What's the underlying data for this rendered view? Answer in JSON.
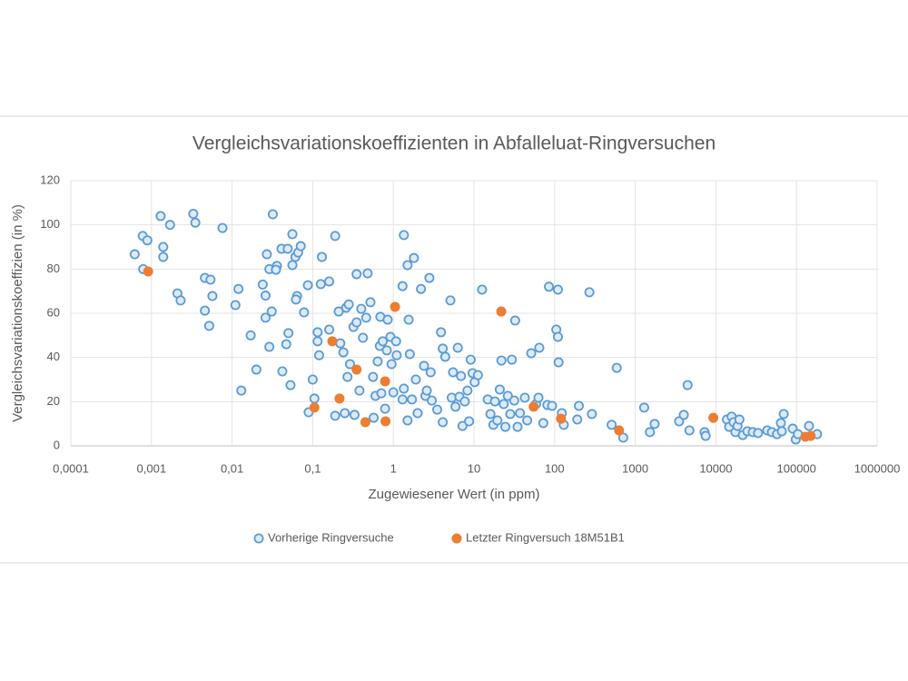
{
  "chart_data": {
    "type": "scatter",
    "title": "Vergleichsvariationskoeffizienten in Abfalleluat-Ringversuchen",
    "x_label": "Zugewiesener Wert (in ppm)",
    "y_label": "Vergleichsvariationskoeffizien (in %)",
    "x_log": true,
    "grid": true,
    "legend": "bottom",
    "xlim": [
      0.0001,
      1000000
    ],
    "ylim": [
      0,
      120
    ],
    "xticks": [
      {
        "value": 0.0001,
        "label": "0,0001"
      },
      {
        "value": 0.001,
        "label": "0,001"
      },
      {
        "value": 0.01,
        "label": "0,01"
      },
      {
        "value": 0.1,
        "label": "0,1"
      },
      1,
      10,
      100,
      1000,
      10000,
      100000,
      1000000
    ],
    "yticks": [
      0,
      20,
      40,
      60,
      80,
      100,
      120
    ],
    "series": [
      {
        "name": "Vorherige Ringversuche",
        "color": "#5b9bd5",
        "fill": "#deebf7",
        "x": [
          0.00062,
          0.00078,
          0.00089,
          0.00079,
          0.0013,
          0.0014,
          0.0014,
          0.0017,
          0.0021,
          0.0023,
          0.0033,
          0.0035,
          0.0076,
          0.0046,
          0.0054,
          0.0057,
          0.0046,
          0.0052,
          0.012,
          0.011,
          0.013,
          0.017,
          0.02,
          0.024,
          0.026,
          0.027,
          0.029,
          0.031,
          0.029,
          0.026,
          0.032,
          0.036,
          0.035,
          0.041,
          0.049,
          0.042,
          0.047,
          0.05,
          0.053,
          0.056,
          0.056,
          0.061,
          0.064,
          0.066,
          0.071,
          0.078,
          0.062,
          0.089,
          0.1,
          0.105,
          0.087,
          0.115,
          0.115,
          0.12,
          0.126,
          0.13,
          0.16,
          0.16,
          0.19,
          0.19,
          0.21,
          0.22,
          0.24,
          0.25,
          0.26,
          0.27,
          0.28,
          0.29,
          0.32,
          0.33,
          0.35,
          0.35,
          0.38,
          0.4,
          0.42,
          0.46,
          0.48,
          0.52,
          0.56,
          0.57,
          0.6,
          0.64,
          0.68,
          0.69,
          0.71,
          0.74,
          0.79,
          0.83,
          0.85,
          0.92,
          0.95,
          1.0,
          1.08,
          1.1,
          1.3,
          1.35,
          1.3,
          1.35,
          1.5,
          1.5,
          1.55,
          1.6,
          1.7,
          1.8,
          1.9,
          2.0,
          2.2,
          2.4,
          2.5,
          2.6,
          2.8,
          2.9,
          3.0,
          3.5,
          3.9,
          4.1,
          4.4,
          4.1,
          5.1,
          5.3,
          5.5,
          5.9,
          6.3,
          6.6,
          6.9,
          7.2,
          7.7,
          8.3,
          8.7,
          9.1,
          9.6,
          10.2,
          11.2,
          12.6,
          14.8,
          16,
          17.4,
          18.2,
          19.5,
          20.9,
          21.9,
          23.4,
          24.5,
          26.3,
          28.2,
          29.5,
          31.6,
          32.4,
          34.7,
          37.2,
          42.7,
          45.7,
          51.3,
          58.9,
          63.1,
          64.6,
          72.4,
          81.3,
          85,
          93,
          105,
          110,
          112,
          110,
          123,
          130,
          200,
          191,
          270,
          290,
          510,
          590,
          710,
          1290,
          1520,
          1740,
          3500,
          4000,
          4460,
          4700,
          7240,
          7470,
          13700,
          14600,
          15700,
          16600,
          17500,
          18600,
          19600,
          21600,
          24600,
          28700,
          33400,
          43400,
          49500,
          57300,
          64000,
          69400,
          65800,
          89600,
          97900,
          104000,
          143000,
          180000
        ],
        "values": [
          86.7,
          95,
          93,
          80,
          104,
          90,
          85.5,
          100,
          69,
          65.8,
          105,
          101,
          98.6,
          76,
          75.2,
          67.8,
          61.2,
          54.3,
          71,
          63.7,
          25,
          50,
          34.5,
          73,
          68,
          86.7,
          80,
          60.8,
          44.8,
          58,
          104.8,
          81.4,
          79.7,
          89.2,
          89.2,
          33.7,
          46,
          51,
          27.5,
          95.8,
          81.8,
          85.5,
          67.8,
          87.5,
          90.4,
          60.4,
          66.2,
          15.2,
          30,
          21.4,
          72.7,
          51.4,
          47.3,
          41,
          73.2,
          85.5,
          52.6,
          74.4,
          95,
          13.6,
          60.8,
          46.4,
          42.3,
          14.8,
          62.5,
          31.2,
          64,
          37,
          53.8,
          14,
          77.7,
          55.9,
          25,
          62,
          48.9,
          58,
          78.1,
          65,
          31.2,
          12.7,
          22.6,
          38.2,
          45.2,
          58.4,
          23.8,
          47.3,
          16.8,
          43.2,
          57.1,
          49.3,
          37,
          24.2,
          47.3,
          41,
          21,
          95.4,
          72.3,
          25.9,
          11.5,
          81.8,
          57.1,
          41.5,
          21,
          85,
          30,
          14.8,
          71,
          36.2,
          22.6,
          25,
          76,
          33.3,
          20.5,
          16.4,
          51.4,
          44,
          40.3,
          10.7,
          65.8,
          21.8,
          33.3,
          17.7,
          44.4,
          22.2,
          31.6,
          9,
          20.1,
          25,
          11.1,
          39,
          32.9,
          28.8,
          32,
          70.7,
          21,
          14.4,
          9.5,
          20.1,
          11.5,
          25.5,
          38.6,
          18.9,
          8.6,
          22.6,
          14.4,
          39,
          20.5,
          56.7,
          8.6,
          14.8,
          21.8,
          11.5,
          41.9,
          18.9,
          21.8,
          44.4,
          10.3,
          18.5,
          72,
          18.1,
          52.6,
          70.7,
          37.8,
          49.3,
          14.8,
          9.5,
          18.1,
          11.9,
          69.5,
          14.4,
          9.5,
          35.3,
          3.7,
          17.3,
          6.2,
          9.9,
          11.1,
          14,
          27.5,
          7,
          6.2,
          4.5,
          11.9,
          8.6,
          13.2,
          10.7,
          6.2,
          9,
          11.9,
          4.9,
          6.6,
          6.2,
          5.8,
          7,
          6.2,
          5.3,
          10.3,
          14.4,
          6.6,
          7.8,
          2.9,
          5.3,
          9,
          5.3
        ]
      },
      {
        "name": "Letzter Ringversuch 18M51B1",
        "color": "#ed7d31",
        "fill": "#ed7d31",
        "x": [
          0.00091,
          0.175,
          0.215,
          0.105,
          0.35,
          0.45,
          0.79,
          0.8,
          1.05,
          21.8,
          55,
          120,
          630,
          9300,
          129000,
          150000
        ],
        "values": [
          78.9,
          47.3,
          21.4,
          17.3,
          34.5,
          10.7,
          29.2,
          11.1,
          62.9,
          60.8,
          17.7,
          12.3,
          7,
          12.7,
          4.1,
          4.5
        ]
      }
    ]
  }
}
